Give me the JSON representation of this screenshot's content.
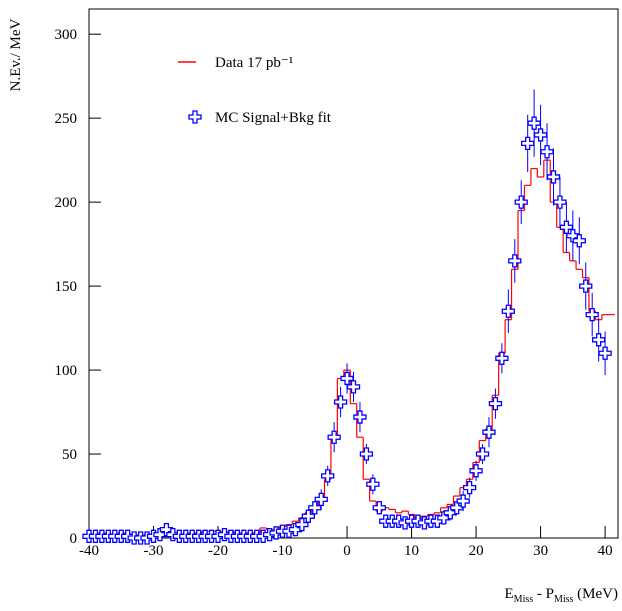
{
  "chart_data": {
    "type": "histogram",
    "y_label": "N.Ev./ MeV",
    "x_label_parts": [
      "E",
      "Miss",
      " - P",
      "Miss",
      " (MeV)"
    ],
    "xlim": [
      -40,
      42
    ],
    "ylim": [
      0,
      315
    ],
    "xticks": [
      -40,
      -30,
      -20,
      -10,
      0,
      10,
      20,
      30,
      40
    ],
    "yticks": [
      0,
      50,
      100,
      150,
      200,
      250,
      300
    ],
    "series": [
      {
        "name": "Data 17 pb⁻¹",
        "color": "#ff0000",
        "style": "step",
        "x": [
          -40,
          -39,
          -38,
          -37,
          -36,
          -35,
          -34,
          -33,
          -32,
          -31,
          -30,
          -29,
          -28,
          -27,
          -26,
          -25,
          -24,
          -23,
          -22,
          -21,
          -20,
          -19,
          -18,
          -17,
          -16,
          -15,
          -14,
          -13,
          -12,
          -11,
          -10,
          -9,
          -8,
          -7,
          -6,
          -5,
          -4,
          -3,
          -2,
          -1,
          0,
          1,
          2,
          3,
          4,
          5,
          6,
          7,
          8,
          9,
          10,
          11,
          12,
          13,
          14,
          15,
          16,
          17,
          18,
          19,
          20,
          21,
          22,
          23,
          24,
          25,
          26,
          27,
          28,
          29,
          30,
          31,
          32,
          33,
          34,
          35,
          36,
          37,
          38,
          39,
          40,
          41
        ],
        "values": [
          2,
          2,
          3,
          2,
          2,
          3,
          2,
          2,
          1,
          2,
          2,
          2,
          3,
          2,
          2,
          2,
          3,
          3,
          4,
          4,
          4,
          3,
          4,
          3,
          3,
          3,
          3,
          6,
          5,
          5,
          7,
          8,
          10,
          12,
          15,
          18,
          22,
          35,
          60,
          95,
          100,
          80,
          60,
          35,
          22,
          16,
          18,
          17,
          15,
          16,
          14,
          12,
          13,
          14,
          15,
          18,
          20,
          25,
          30,
          35,
          45,
          58,
          65,
          85,
          110,
          130,
          160,
          195,
          210,
          220,
          215,
          225,
          200,
          185,
          170,
          165,
          160,
          155,
          135,
          130,
          133,
          133
        ]
      },
      {
        "name": "MC Signal+Bkg fit",
        "color": "#0000ff",
        "style": "cross",
        "x": [
          -40,
          -39,
          -38,
          -37,
          -36,
          -35,
          -34,
          -33,
          -32,
          -31,
          -30,
          -29,
          -28,
          -27,
          -26,
          -25,
          -24,
          -23,
          -22,
          -21,
          -20,
          -19,
          -18,
          -17,
          -16,
          -15,
          -14,
          -13,
          -12,
          -11,
          -10,
          -9,
          -8,
          -7,
          -6,
          -5,
          -4,
          -3,
          -2,
          -1,
          0,
          1,
          2,
          3,
          4,
          5,
          6,
          7,
          8,
          9,
          10,
          11,
          12,
          13,
          14,
          15,
          16,
          17,
          18,
          19,
          20,
          21,
          22,
          23,
          24,
          25,
          26,
          27,
          28,
          29,
          30,
          31,
          32,
          33,
          34,
          35,
          36,
          37,
          38,
          39,
          40
        ],
        "values": [
          1,
          1,
          1,
          1,
          1,
          1,
          1,
          0,
          0,
          0,
          1,
          2,
          5,
          2,
          1,
          1,
          1,
          1,
          1,
          1,
          1,
          2,
          1,
          1,
          1,
          1,
          1,
          1,
          2,
          3,
          4,
          4,
          5,
          8,
          13,
          18,
          23,
          37,
          60,
          81,
          95,
          90,
          72,
          50,
          32,
          18,
          10,
          10,
          10,
          9,
          10,
          10,
          9,
          10,
          10,
          12,
          15,
          18,
          22,
          30,
          40,
          50,
          63,
          80,
          107,
          135,
          165,
          200,
          235,
          247,
          240,
          230,
          215,
          200,
          185,
          180,
          177,
          150,
          133,
          118,
          110
        ],
        "errors": [
          2,
          2,
          2,
          2,
          2,
          2,
          2,
          2,
          2,
          2,
          2,
          2,
          4,
          2,
          2,
          2,
          2,
          2,
          2,
          2,
          2,
          2,
          2,
          2,
          2,
          2,
          2,
          2,
          2,
          2,
          2,
          2,
          4,
          4,
          4,
          4,
          6,
          6,
          9,
          9,
          9,
          9,
          9,
          6,
          6,
          4,
          4,
          4,
          4,
          4,
          4,
          4,
          4,
          4,
          4,
          4,
          4,
          4,
          6,
          6,
          6,
          6,
          9,
          9,
          9,
          13,
          13,
          13,
          17,
          20,
          18,
          17,
          17,
          15,
          15,
          15,
          14,
          14,
          13,
          13,
          13
        ]
      }
    ]
  }
}
